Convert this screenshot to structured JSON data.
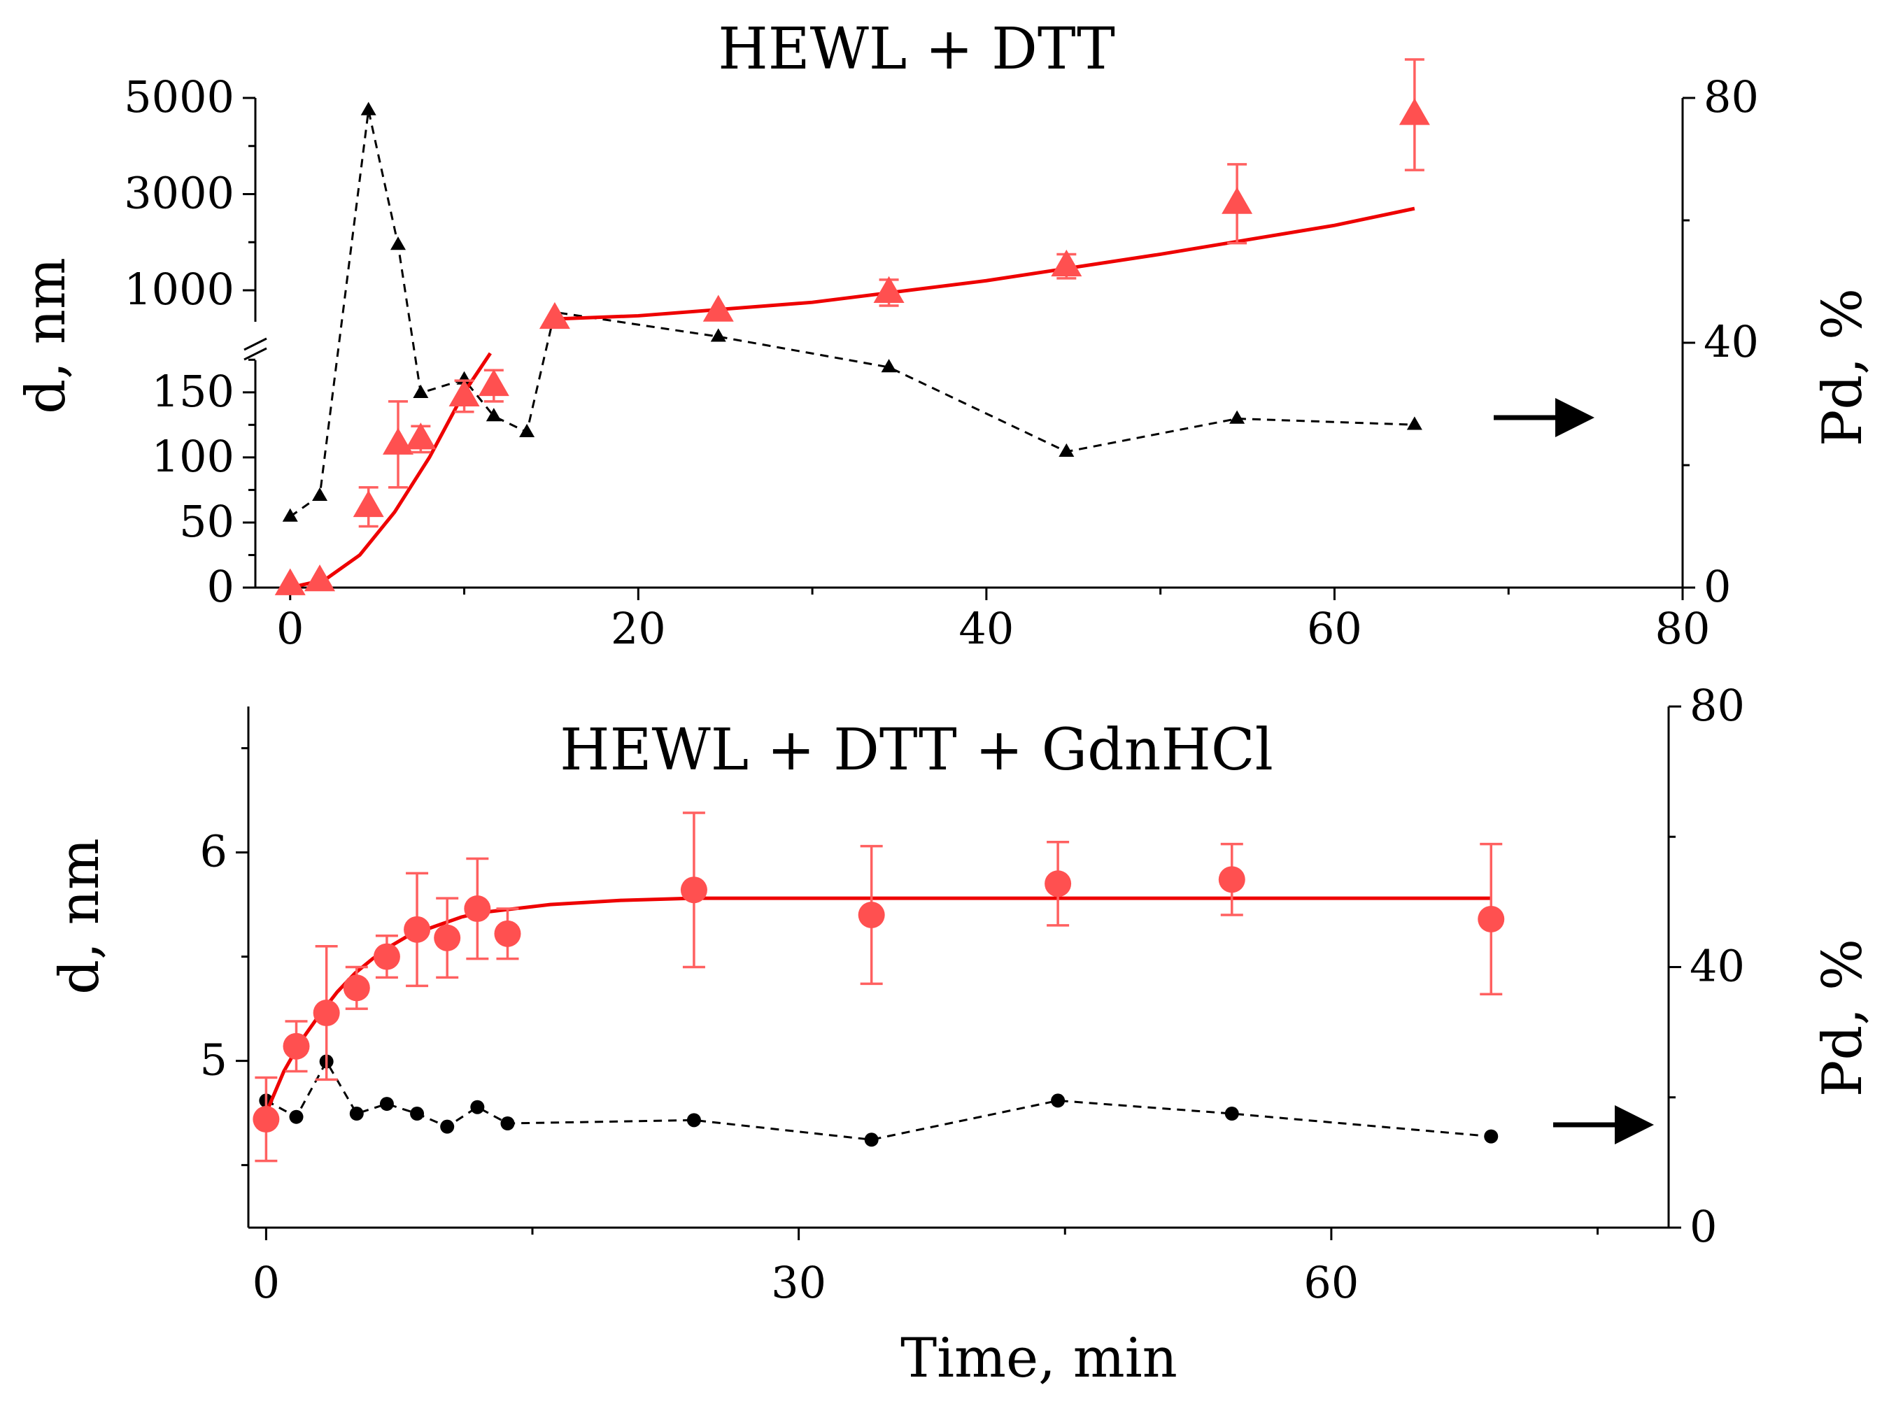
{
  "colors": {
    "fit": "#ee0000",
    "marker": "#ff5050",
    "errorbar": "#ff6060",
    "dashed": "#000000",
    "axis": "#000000"
  },
  "chart_data": [
    {
      "type": "scatter",
      "title": "HEWL + DTT",
      "xlabel": "",
      "ylabel": "d, nm",
      "y2label": "Pd, %",
      "xlim": [
        -2,
        80
      ],
      "x_ticks": [
        0,
        20,
        40,
        60,
        80
      ],
      "y_break": true,
      "ylim_lower": [
        0,
        180
      ],
      "y_ticks_lower": [
        0,
        50,
        100,
        150
      ],
      "ylim_upper": [
        200,
        5000
      ],
      "y_ticks_upper": [
        1000,
        3000,
        5000
      ],
      "y2lim": [
        0,
        80
      ],
      "y2_ticks": [
        0,
        40,
        80
      ],
      "legend": "none",
      "grid": false,
      "arrow_annotation": "right",
      "series": [
        {
          "marker": "triangle",
          "axis": "left",
          "x": [
            0,
            1.7,
            4.5,
            6.2,
            7.5,
            10,
            11.7,
            15.2,
            24.6,
            34.4,
            44.6,
            54.4,
            64.6
          ],
          "y": [
            2,
            5,
            62,
            110,
            114,
            147,
            155,
            410,
            560,
            950,
            1500,
            2800,
            4650
          ],
          "err": [
            0,
            0,
            15,
            33,
            10,
            12,
            12,
            0,
            0,
            270,
            250,
            820,
            1150
          ]
        },
        {
          "type": "line",
          "style": "solid",
          "axis": "left",
          "segments": [
            {
              "x": [
                0,
                2,
                4,
                6,
                8,
                10,
                11.5
              ],
              "y": [
                0,
                6,
                25,
                58,
                100,
                150,
                180
              ]
            },
            {
              "x": [
                15,
                20,
                30,
                40,
                50,
                60,
                64.6
              ],
              "y": [
                400,
                470,
                750,
                1200,
                1750,
                2350,
                2700
              ]
            }
          ]
        },
        {
          "marker": "small-triangle",
          "style": "dashed",
          "axis": "right",
          "x": [
            0,
            1.7,
            4.5,
            6.2,
            7.5,
            10,
            11.7,
            13.6,
            15.2,
            24.6,
            34.4,
            44.6,
            54.4,
            64.6
          ],
          "y": [
            11.6,
            15.0,
            78.0,
            56.0,
            31.8,
            34.0,
            28.0,
            25.4,
            45.0,
            41.0,
            36.0,
            22.2,
            27.6,
            26.6
          ]
        }
      ]
    },
    {
      "type": "scatter",
      "title": "HEWL + DTT + GdnHCl",
      "xlabel": "Time, min",
      "ylabel": "d, nm",
      "y2label": "Pd, %",
      "xlim": [
        -1,
        79
      ],
      "x_ticks": [
        0,
        30,
        60
      ],
      "ylim": [
        4.2,
        6.7
      ],
      "y_ticks": [
        5,
        6
      ],
      "y2lim": [
        0,
        80
      ],
      "y2_ticks": [
        0,
        40,
        80
      ],
      "legend": "none",
      "grid": false,
      "arrow_annotation": "right",
      "series": [
        {
          "marker": "circle",
          "axis": "left",
          "x": [
            0,
            1.7,
            3.4,
            5.1,
            6.8,
            8.5,
            10.2,
            11.9,
            13.6,
            24.1,
            34.1,
            44.6,
            54.4,
            69.0
          ],
          "y": [
            4.72,
            5.07,
            5.23,
            5.35,
            5.5,
            5.63,
            5.59,
            5.73,
            5.61,
            5.82,
            5.7,
            5.85,
            5.87,
            5.68
          ],
          "err": [
            0.2,
            0.12,
            0.32,
            0.1,
            0.1,
            0.27,
            0.19,
            0.24,
            0.12,
            0.37,
            0.33,
            0.2,
            0.17,
            0.36
          ]
        },
        {
          "type": "line",
          "style": "solid",
          "axis": "left",
          "x": [
            0,
            1,
            2,
            3,
            4,
            5,
            6,
            7,
            8,
            9,
            10,
            11,
            12,
            13,
            14,
            15,
            16,
            18,
            20,
            24,
            30,
            40,
            50,
            60,
            69
          ],
          "y": [
            4.75,
            4.95,
            5.1,
            5.22,
            5.33,
            5.42,
            5.49,
            5.55,
            5.6,
            5.63,
            5.66,
            5.69,
            5.71,
            5.72,
            5.73,
            5.74,
            5.75,
            5.76,
            5.77,
            5.78,
            5.78,
            5.78,
            5.78,
            5.78,
            5.78
          ]
        },
        {
          "marker": "small-circle",
          "style": "dashed",
          "axis": "right",
          "x": [
            0,
            1.7,
            3.4,
            5.1,
            6.8,
            8.5,
            10.2,
            11.9,
            13.6,
            24.1,
            34.1,
            44.6,
            54.4,
            69.0
          ],
          "y": [
            19.5,
            17.0,
            25.5,
            17.5,
            19.0,
            17.5,
            15.5,
            18.5,
            16.0,
            16.5,
            13.5,
            19.5,
            17.5,
            14.0
          ]
        }
      ]
    }
  ]
}
